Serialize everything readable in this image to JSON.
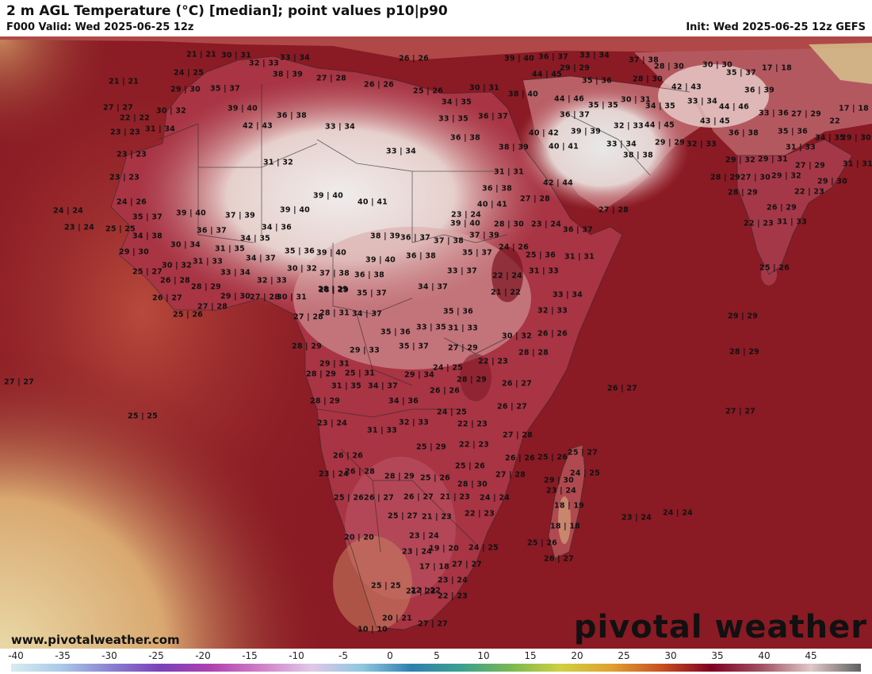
{
  "header": {
    "title": "2 m AGL Temperature (°C) [median]; point values p10|p90",
    "valid": "F000 Valid: Wed 2025-06-25 12z",
    "init": "Init: Wed 2025-06-25 12z GEFS"
  },
  "footer": {
    "website": "www.pivotalweather.com",
    "brand": "pivotal weather"
  },
  "legend": {
    "ticks": [
      "-40",
      "-35",
      "-30",
      "-25",
      "-20",
      "-15",
      "-10",
      "-5",
      "0",
      "5",
      "10",
      "15",
      "20",
      "25",
      "30",
      "35",
      "40",
      "45"
    ],
    "colors": [
      "#d9ecf0",
      "#a9c9e8",
      "#8a7fd0",
      "#7a40b8",
      "#b040b0",
      "#d080c8",
      "#e0c8e8",
      "#8fc8e0",
      "#2f7fb0",
      "#3aa090",
      "#7ab850",
      "#d0d040",
      "#e0a030",
      "#c85020",
      "#800020",
      "#a05060",
      "#e0c8c8",
      "#606060"
    ]
  },
  "map": {
    "colors": {
      "ocean": "#8a1a24",
      "hot_land": "#efe3e0",
      "warm_land": "#a83040",
      "cool_land": "#c8a080",
      "sand": "#e8d6a0"
    },
    "points": [
      {
        "id": "a1",
        "text": "21 | 21"
      },
      {
        "id": "a2",
        "text": "30 | 31"
      },
      {
        "id": "a3",
        "text": "32 | 33"
      },
      {
        "id": "a4",
        "text": "33 | 34"
      },
      {
        "id": "a5",
        "text": "26 | 26"
      },
      {
        "id": "a6",
        "text": "39 | 40"
      },
      {
        "id": "a7",
        "text": "36 | 37"
      },
      {
        "id": "a8",
        "text": "33 | 34"
      },
      {
        "id": "a9",
        "text": "37 | 38"
      },
      {
        "id": "a10",
        "text": "30 | 30"
      },
      {
        "id": "a11",
        "text": "21 | 21"
      },
      {
        "id": "a12",
        "text": "24 | 25"
      },
      {
        "id": "a13",
        "text": "38 | 39"
      },
      {
        "id": "a14",
        "text": "27 | 28"
      },
      {
        "id": "a15",
        "text": "26 | 26"
      },
      {
        "id": "a16",
        "text": "44 | 45"
      },
      {
        "id": "a17",
        "text": "29 | 29"
      },
      {
        "id": "a18",
        "text": "28 | 30"
      },
      {
        "id": "a19",
        "text": "35 | 37"
      },
      {
        "id": "a20",
        "text": "17 | 18"
      },
      {
        "id": "a21",
        "text": "29 | 30"
      },
      {
        "id": "a22",
        "text": "35 | 37"
      },
      {
        "id": "a23",
        "text": "25 | 26"
      },
      {
        "id": "a24",
        "text": "30 | 31"
      },
      {
        "id": "a25",
        "text": "35 | 36"
      },
      {
        "id": "a26",
        "text": "28 | 30"
      },
      {
        "id": "a27",
        "text": "42 | 43"
      },
      {
        "id": "a28",
        "text": "36 | 39"
      },
      {
        "id": "a29",
        "text": "38 | 40"
      },
      {
        "id": "a30",
        "text": "44 | 46"
      },
      {
        "id": "a31",
        "text": "30 | 32"
      },
      {
        "id": "a32",
        "text": "39 | 40"
      },
      {
        "id": "a33",
        "text": "34 | 35"
      },
      {
        "id": "a34",
        "text": "35 | 35"
      },
      {
        "id": "a35",
        "text": "30 | 31"
      },
      {
        "id": "a36",
        "text": "34 | 35"
      },
      {
        "id": "a37",
        "text": "33 | 34"
      },
      {
        "id": "a38",
        "text": "44 | 46"
      },
      {
        "id": "a39",
        "text": "17 | 18"
      },
      {
        "id": "a40",
        "text": "22 | 22"
      },
      {
        "id": "a41",
        "text": "36 | 38"
      },
      {
        "id": "a42",
        "text": "33 | 35"
      },
      {
        "id": "a43",
        "text": "36 | 37"
      },
      {
        "id": "a44",
        "text": "36 | 37"
      },
      {
        "id": "a45",
        "text": "33 | 36"
      },
      {
        "id": "a46",
        "text": "27 | 29"
      },
      {
        "id": "a47",
        "text": "22"
      },
      {
        "id": "a48",
        "text": "42 | 43"
      },
      {
        "id": "a49",
        "text": "33 | 34"
      },
      {
        "id": "a50",
        "text": "39 | 39"
      },
      {
        "id": "a51",
        "text": "32 | 33"
      },
      {
        "id": "a52",
        "text": "44 | 45"
      },
      {
        "id": "a53",
        "text": "43 | 45"
      },
      {
        "id": "a54",
        "text": "35 | 36"
      },
      {
        "id": "a55",
        "text": "31 | 34"
      },
      {
        "id": "a56",
        "text": "40 | 42"
      },
      {
        "id": "a57",
        "text": "36 | 38"
      },
      {
        "id": "a58",
        "text": "36 | 38"
      },
      {
        "id": "a59",
        "text": "34 | 35"
      },
      {
        "id": "a60",
        "text": "29 | 30"
      },
      {
        "id": "a61",
        "text": "23 | 23"
      },
      {
        "id": "a62",
        "text": "33 | 34"
      },
      {
        "id": "a63",
        "text": "38 | 39"
      },
      {
        "id": "a64",
        "text": "40 | 41"
      },
      {
        "id": "a65",
        "text": "33 | 34"
      },
      {
        "id": "a66",
        "text": "29 | 29"
      },
      {
        "id": "a67",
        "text": "32 | 33"
      },
      {
        "id": "a68",
        "text": "31 | 33"
      },
      {
        "id": "a69",
        "text": "38 | 38"
      },
      {
        "id": "a70",
        "text": "31 | 32"
      },
      {
        "id": "a71",
        "text": "29 | 32"
      },
      {
        "id": "a72",
        "text": "29 | 31"
      },
      {
        "id": "a73",
        "text": "23 | 23"
      },
      {
        "id": "a74",
        "text": "31 | 31"
      },
      {
        "id": "a75",
        "text": "27 | 29"
      },
      {
        "id": "a76",
        "text": "31 | 31"
      },
      {
        "id": "a77",
        "text": "28 | 29"
      },
      {
        "id": "a78",
        "text": "27 | 30"
      },
      {
        "id": "a79",
        "text": "29 | 32"
      },
      {
        "id": "a80",
        "text": "42 | 44"
      },
      {
        "id": "a81",
        "text": "36 | 38"
      },
      {
        "id": "a82",
        "text": "29 | 30"
      },
      {
        "id": "a83",
        "text": "28 | 29"
      },
      {
        "id": "a84",
        "text": "22 | 23"
      },
      {
        "id": "a85",
        "text": "24 | 26"
      },
      {
        "id": "a86",
        "text": "39 | 40"
      },
      {
        "id": "a87",
        "text": "40 | 41"
      },
      {
        "id": "a88",
        "text": "27 | 28"
      },
      {
        "id": "a89",
        "text": "27 | 28"
      },
      {
        "id": "a90",
        "text": "26 | 29"
      },
      {
        "id": "a91",
        "text": "24 | 24"
      },
      {
        "id": "a92",
        "text": "39 | 40"
      },
      {
        "id": "a93",
        "text": "37 | 39"
      },
      {
        "id": "a94",
        "text": "39 | 40"
      },
      {
        "id": "a95",
        "text": "23 | 24"
      },
      {
        "id": "a96",
        "text": "35 | 37"
      },
      {
        "id": "a97",
        "text": "40 | 41"
      },
      {
        "id": "a98",
        "text": "22 | 23"
      },
      {
        "id": "a99",
        "text": "31 | 33"
      },
      {
        "id": "a100",
        "text": "23 | 24"
      },
      {
        "id": "a101",
        "text": "25 | 25"
      },
      {
        "id": "a102",
        "text": "36 | 37"
      },
      {
        "id": "a103",
        "text": "34 | 36"
      },
      {
        "id": "a104",
        "text": "39 | 40"
      },
      {
        "id": "a105",
        "text": "28 | 30"
      },
      {
        "id": "a106",
        "text": "36 | 37"
      },
      {
        "id": "a107",
        "text": "34 | 38"
      },
      {
        "id": "a108",
        "text": "34 | 35"
      },
      {
        "id": "a109",
        "text": "38 | 39"
      },
      {
        "id": "a110",
        "text": "36 | 37"
      },
      {
        "id": "a111",
        "text": "37 | 38"
      },
      {
        "id": "a112",
        "text": "37 | 39"
      },
      {
        "id": "a113",
        "text": "23 | 24"
      },
      {
        "id": "a114",
        "text": "29 | 30"
      },
      {
        "id": "a115",
        "text": "30 | 34"
      },
      {
        "id": "a116",
        "text": "31 | 35"
      },
      {
        "id": "a117",
        "text": "35 | 36"
      },
      {
        "id": "a118",
        "text": "39 | 40"
      },
      {
        "id": "a119",
        "text": "24 | 26"
      },
      {
        "id": "a120",
        "text": "30 | 32"
      },
      {
        "id": "a121",
        "text": "34 | 37"
      },
      {
        "id": "a122",
        "text": "39 | 40"
      },
      {
        "id": "a123",
        "text": "36 | 38"
      },
      {
        "id": "a124",
        "text": "35 | 37"
      },
      {
        "id": "a125",
        "text": "25 | 36"
      },
      {
        "id": "a126",
        "text": "31 | 31"
      },
      {
        "id": "a127",
        "text": "25 | 26"
      },
      {
        "id": "a128",
        "text": "25 | 27"
      },
      {
        "id": "a129",
        "text": "31 | 33"
      },
      {
        "id": "a130",
        "text": "33 | 34"
      },
      {
        "id": "a131",
        "text": "30 | 32"
      },
      {
        "id": "a132",
        "text": "37 | 38"
      },
      {
        "id": "a133",
        "text": "36 | 38"
      },
      {
        "id": "a134",
        "text": "33 | 37"
      },
      {
        "id": "a135",
        "text": "22 | 24"
      },
      {
        "id": "a136",
        "text": "31 | 33"
      },
      {
        "id": "a137",
        "text": "26 | 28"
      },
      {
        "id": "a138",
        "text": "32 | 33"
      },
      {
        "id": "a139",
        "text": "28 | 29"
      },
      {
        "id": "a140",
        "text": "26 | 27"
      },
      {
        "id": "a141",
        "text": "28 | 29"
      },
      {
        "id": "a142",
        "text": "29 | 30"
      },
      {
        "id": "a143",
        "text": "27 | 28"
      },
      {
        "id": "a144",
        "text": "30 | 31"
      },
      {
        "id": "a145",
        "text": "28 | 29"
      },
      {
        "id": "a146",
        "text": "35 | 37"
      },
      {
        "id": "a147",
        "text": "34 | 37"
      },
      {
        "id": "a148",
        "text": "21 | 22"
      },
      {
        "id": "a149",
        "text": "33 | 34"
      },
      {
        "id": "a150",
        "text": "27 | 28"
      },
      {
        "id": "a151",
        "text": "25 | 26"
      },
      {
        "id": "a152",
        "text": "27 | 28"
      },
      {
        "id": "a153",
        "text": "28 | 31"
      },
      {
        "id": "a154",
        "text": "34 | 37"
      },
      {
        "id": "a155",
        "text": "35 | 36"
      },
      {
        "id": "a156",
        "text": "32 | 33"
      },
      {
        "id": "a157",
        "text": "29 | 29"
      },
      {
        "id": "a158",
        "text": "35 | 36"
      },
      {
        "id": "a159",
        "text": "33 | 35"
      },
      {
        "id": "a160",
        "text": "31 | 33"
      },
      {
        "id": "a161",
        "text": "30 | 32"
      },
      {
        "id": "a162",
        "text": "26 | 26"
      },
      {
        "id": "a163",
        "text": "28 | 29"
      },
      {
        "id": "a164",
        "text": "29 | 33"
      },
      {
        "id": "a165",
        "text": "35 | 37"
      },
      {
        "id": "a166",
        "text": "27 | 29"
      },
      {
        "id": "a167",
        "text": "28 | 28"
      },
      {
        "id": "a168",
        "text": "28 | 29"
      },
      {
        "id": "a169",
        "text": "29 | 31"
      },
      {
        "id": "a170",
        "text": "22 | 23"
      },
      {
        "id": "a171",
        "text": "24 | 25"
      },
      {
        "id": "a172",
        "text": "25 | 31"
      },
      {
        "id": "a173",
        "text": "29 | 34"
      },
      {
        "id": "a174",
        "text": "27 | 27"
      },
      {
        "id": "a175",
        "text": "28 | 29"
      },
      {
        "id": "a176",
        "text": "26 | 27"
      },
      {
        "id": "a177",
        "text": "31 | 35"
      },
      {
        "id": "a178",
        "text": "34 | 37"
      },
      {
        "id": "a179",
        "text": "26 | 26"
      },
      {
        "id": "a180",
        "text": "26 | 27"
      },
      {
        "id": "a181",
        "text": "28 | 29"
      },
      {
        "id": "a182",
        "text": "34 | 36"
      },
      {
        "id": "a183",
        "text": "27 | 27"
      },
      {
        "id": "a184",
        "text": "26 | 27"
      },
      {
        "id": "a185",
        "text": "25 | 25"
      },
      {
        "id": "a186",
        "text": "24 | 25"
      },
      {
        "id": "a187",
        "text": "23 | 24"
      },
      {
        "id": "a188",
        "text": "32 | 33"
      },
      {
        "id": "a189",
        "text": "22 | 23"
      },
      {
        "id": "a190",
        "text": "31 | 33"
      },
      {
        "id": "a191",
        "text": "27 | 28"
      },
      {
        "id": "a192",
        "text": "25 | 29"
      },
      {
        "id": "a193",
        "text": "22 | 23"
      },
      {
        "id": "a194",
        "text": "26 | 26"
      },
      {
        "id": "a195",
        "text": "26 | 26"
      },
      {
        "id": "a196",
        "text": "25 | 26"
      },
      {
        "id": "a197",
        "text": "25 | 26"
      },
      {
        "id": "a198",
        "text": "25 | 27"
      },
      {
        "id": "a199",
        "text": "26 | 28"
      },
      {
        "id": "a200",
        "text": "23 | 24"
      },
      {
        "id": "a201",
        "text": "28 | 29"
      },
      {
        "id": "a202",
        "text": "25 | 26"
      },
      {
        "id": "a203",
        "text": "27 | 28"
      },
      {
        "id": "a204",
        "text": "24 | 25"
      },
      {
        "id": "a205",
        "text": "29 | 30"
      },
      {
        "id": "a206",
        "text": "28 | 30"
      },
      {
        "id": "a207",
        "text": "23 | 24"
      },
      {
        "id": "a208",
        "text": "25 | 26"
      },
      {
        "id": "a209",
        "text": "26 | 27"
      },
      {
        "id": "a210",
        "text": "26 | 27"
      },
      {
        "id": "a211",
        "text": "21 | 23"
      },
      {
        "id": "a212",
        "text": "24 | 24"
      },
      {
        "id": "a213",
        "text": "18 | 19"
      },
      {
        "id": "a214",
        "text": "25 | 27"
      },
      {
        "id": "a215",
        "text": "21 | 23"
      },
      {
        "id": "a216",
        "text": "22 | 23"
      },
      {
        "id": "a217",
        "text": "24 | 24"
      },
      {
        "id": "a218",
        "text": "23 | 24"
      },
      {
        "id": "a219",
        "text": "20 | 20"
      },
      {
        "id": "a220",
        "text": "18 | 18"
      },
      {
        "id": "a221",
        "text": "23 | 24"
      },
      {
        "id": "a222",
        "text": "25 | 26"
      },
      {
        "id": "a223",
        "text": "23 | 24"
      },
      {
        "id": "a224",
        "text": "19 | 20"
      },
      {
        "id": "a225",
        "text": "24 | 25"
      },
      {
        "id": "a226",
        "text": "26 | 27"
      },
      {
        "id": "a227",
        "text": "17 | 18"
      },
      {
        "id": "a228",
        "text": "27 | 27"
      },
      {
        "id": "a229",
        "text": "23 | 24"
      },
      {
        "id": "a230",
        "text": "25 | 25"
      },
      {
        "id": "a231",
        "text": "21 | 22"
      },
      {
        "id": "a232",
        "text": "22 | 23"
      },
      {
        "id": "a233",
        "text": "20 | 21"
      },
      {
        "id": "a234",
        "text": "27 | 27"
      },
      {
        "id": "a235",
        "text": "10 | 10"
      },
      {
        "id": "a236",
        "text": "27 | 27"
      },
      {
        "id": "a237",
        "text": "22 | 22"
      },
      {
        "id": "a238",
        "text": "23 | 23"
      },
      {
        "id": "a239",
        "text": "28 | 29"
      }
    ]
  }
}
